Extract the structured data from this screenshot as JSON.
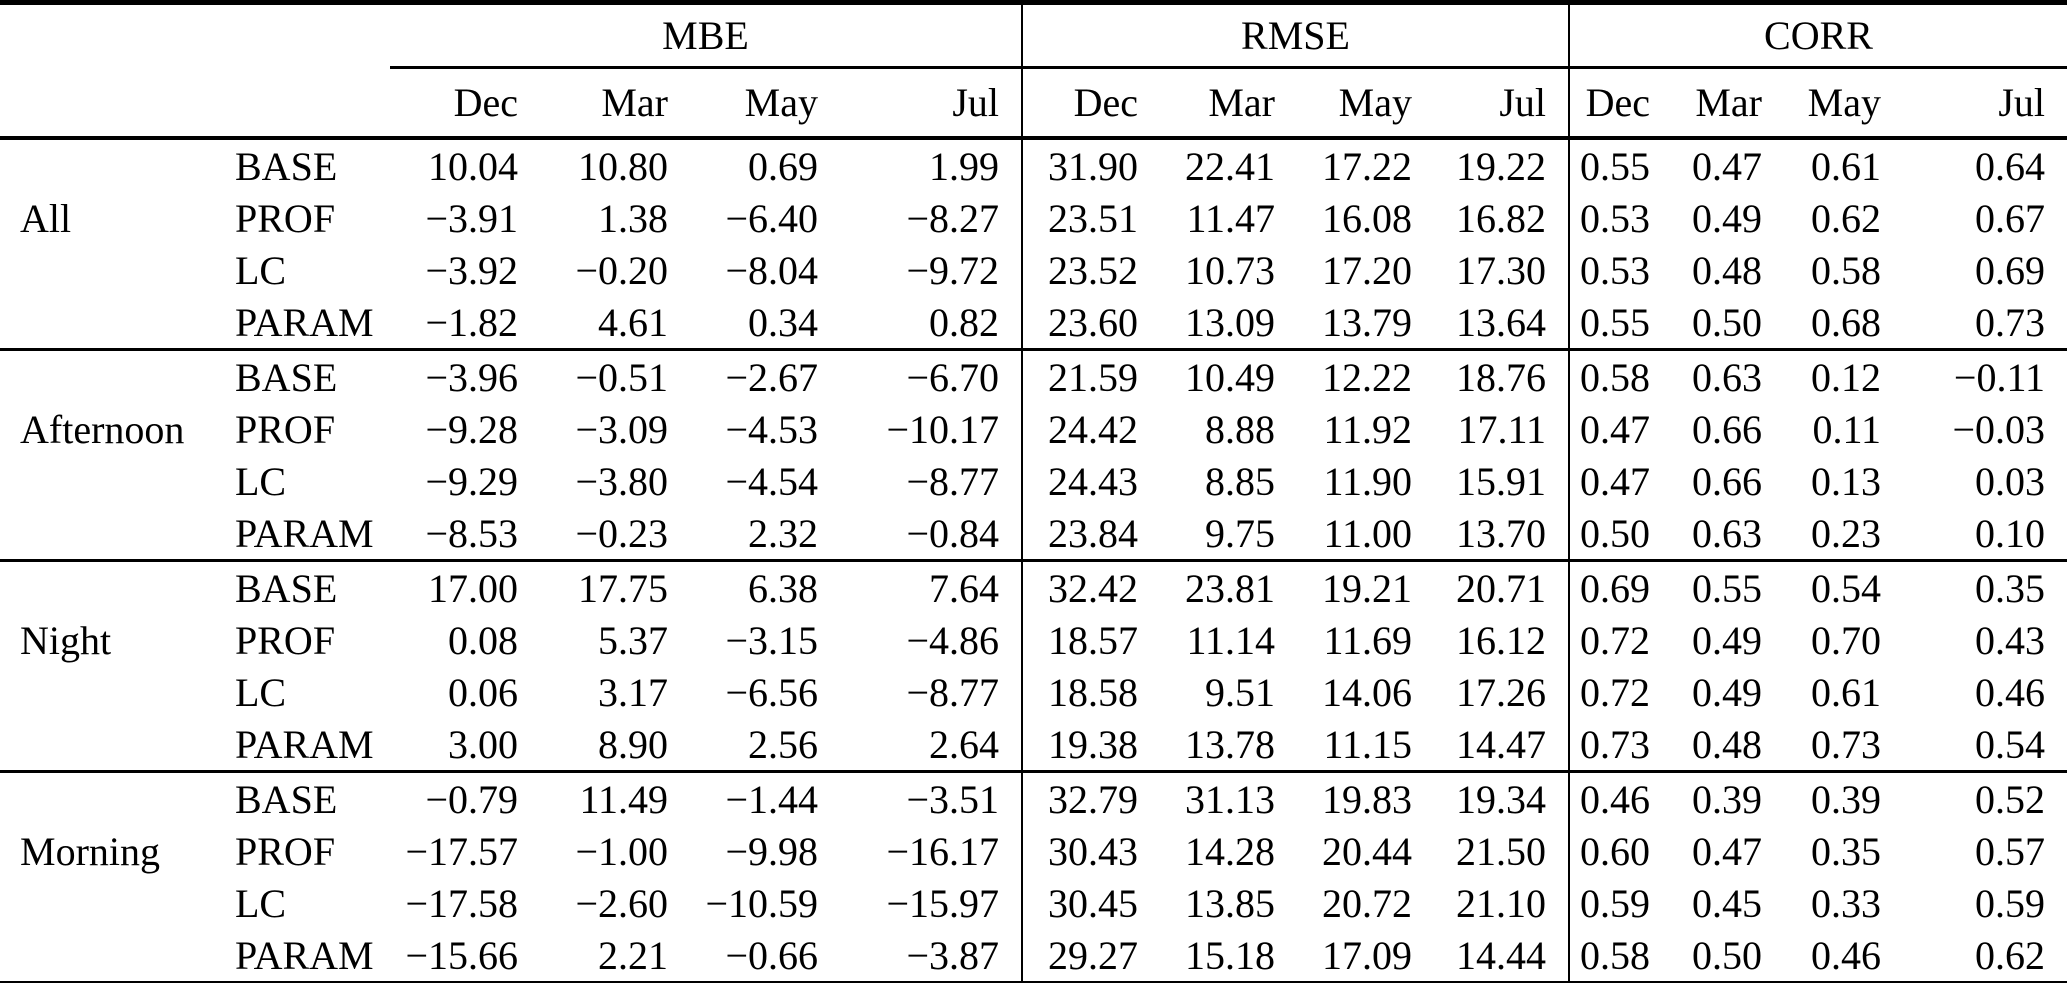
{
  "colors": {
    "background": "#ffffff",
    "text": "#000000",
    "rule": "#000000"
  },
  "table": {
    "metrics": [
      "MBE",
      "RMSE",
      "CORR"
    ],
    "columns": [
      "Dec",
      "Mar",
      "May",
      "Jul"
    ],
    "groups": [
      {
        "label": "All",
        "rows": [
          {
            "model": "BASE",
            "MBE": [
              "10.04",
              "10.80",
              "0.69",
              "1.99"
            ],
            "RMSE": [
              "31.90",
              "22.41",
              "17.22",
              "19.22"
            ],
            "CORR": [
              "0.55",
              "0.47",
              "0.61",
              "0.64"
            ]
          },
          {
            "model": "PROF",
            "MBE": [
              "−3.91",
              "1.38",
              "−6.40",
              "−8.27"
            ],
            "RMSE": [
              "23.51",
              "11.47",
              "16.08",
              "16.82"
            ],
            "CORR": [
              "0.53",
              "0.49",
              "0.62",
              "0.67"
            ]
          },
          {
            "model": "LC",
            "MBE": [
              "−3.92",
              "−0.20",
              "−8.04",
              "−9.72"
            ],
            "RMSE": [
              "23.52",
              "10.73",
              "17.20",
              "17.30"
            ],
            "CORR": [
              "0.53",
              "0.48",
              "0.58",
              "0.69"
            ]
          },
          {
            "model": "PARAM",
            "MBE": [
              "−1.82",
              "4.61",
              "0.34",
              "0.82"
            ],
            "RMSE": [
              "23.60",
              "13.09",
              "13.79",
              "13.64"
            ],
            "CORR": [
              "0.55",
              "0.50",
              "0.68",
              "0.73"
            ]
          }
        ]
      },
      {
        "label": "Afternoon",
        "rows": [
          {
            "model": "BASE",
            "MBE": [
              "−3.96",
              "−0.51",
              "−2.67",
              "−6.70"
            ],
            "RMSE": [
              "21.59",
              "10.49",
              "12.22",
              "18.76"
            ],
            "CORR": [
              "0.58",
              "0.63",
              "0.12",
              "−0.11"
            ]
          },
          {
            "model": "PROF",
            "MBE": [
              "−9.28",
              "−3.09",
              "−4.53",
              "−10.17"
            ],
            "RMSE": [
              "24.42",
              "8.88",
              "11.92",
              "17.11"
            ],
            "CORR": [
              "0.47",
              "0.66",
              "0.11",
              "−0.03"
            ]
          },
          {
            "model": "LC",
            "MBE": [
              "−9.29",
              "−3.80",
              "−4.54",
              "−8.77"
            ],
            "RMSE": [
              "24.43",
              "8.85",
              "11.90",
              "15.91"
            ],
            "CORR": [
              "0.47",
              "0.66",
              "0.13",
              "0.03"
            ]
          },
          {
            "model": "PARAM",
            "MBE": [
              "−8.53",
              "−0.23",
              "2.32",
              "−0.84"
            ],
            "RMSE": [
              "23.84",
              "9.75",
              "11.00",
              "13.70"
            ],
            "CORR": [
              "0.50",
              "0.63",
              "0.23",
              "0.10"
            ]
          }
        ]
      },
      {
        "label": "Night",
        "rows": [
          {
            "model": "BASE",
            "MBE": [
              "17.00",
              "17.75",
              "6.38",
              "7.64"
            ],
            "RMSE": [
              "32.42",
              "23.81",
              "19.21",
              "20.71"
            ],
            "CORR": [
              "0.69",
              "0.55",
              "0.54",
              "0.35"
            ]
          },
          {
            "model": "PROF",
            "MBE": [
              "0.08",
              "5.37",
              "−3.15",
              "−4.86"
            ],
            "RMSE": [
              "18.57",
              "11.14",
              "11.69",
              "16.12"
            ],
            "CORR": [
              "0.72",
              "0.49",
              "0.70",
              "0.43"
            ]
          },
          {
            "model": "LC",
            "MBE": [
              "0.06",
              "3.17",
              "−6.56",
              "−8.77"
            ],
            "RMSE": [
              "18.58",
              "9.51",
              "14.06",
              "17.26"
            ],
            "CORR": [
              "0.72",
              "0.49",
              "0.61",
              "0.46"
            ]
          },
          {
            "model": "PARAM",
            "MBE": [
              "3.00",
              "8.90",
              "2.56",
              "2.64"
            ],
            "RMSE": [
              "19.38",
              "13.78",
              "11.15",
              "14.47"
            ],
            "CORR": [
              "0.73",
              "0.48",
              "0.73",
              "0.54"
            ]
          }
        ]
      },
      {
        "label": "Morning",
        "rows": [
          {
            "model": "BASE",
            "MBE": [
              "−0.79",
              "11.49",
              "−1.44",
              "−3.51"
            ],
            "RMSE": [
              "32.79",
              "31.13",
              "19.83",
              "19.34"
            ],
            "CORR": [
              "0.46",
              "0.39",
              "0.39",
              "0.52"
            ]
          },
          {
            "model": "PROF",
            "MBE": [
              "−17.57",
              "−1.00",
              "−9.98",
              "−16.17"
            ],
            "RMSE": [
              "30.43",
              "14.28",
              "20.44",
              "21.50"
            ],
            "CORR": [
              "0.60",
              "0.47",
              "0.35",
              "0.57"
            ]
          },
          {
            "model": "LC",
            "MBE": [
              "−17.58",
              "−2.60",
              "−10.59",
              "−15.97"
            ],
            "RMSE": [
              "30.45",
              "13.85",
              "20.72",
              "21.10"
            ],
            "CORR": [
              "0.59",
              "0.45",
              "0.33",
              "0.59"
            ]
          },
          {
            "model": "PARAM",
            "MBE": [
              "−15.66",
              "2.21",
              "−0.66",
              "−3.87"
            ],
            "RMSE": [
              "29.27",
              "15.18",
              "17.09",
              "14.44"
            ],
            "CORR": [
              "0.58",
              "0.50",
              "0.46",
              "0.62"
            ]
          }
        ]
      }
    ]
  }
}
